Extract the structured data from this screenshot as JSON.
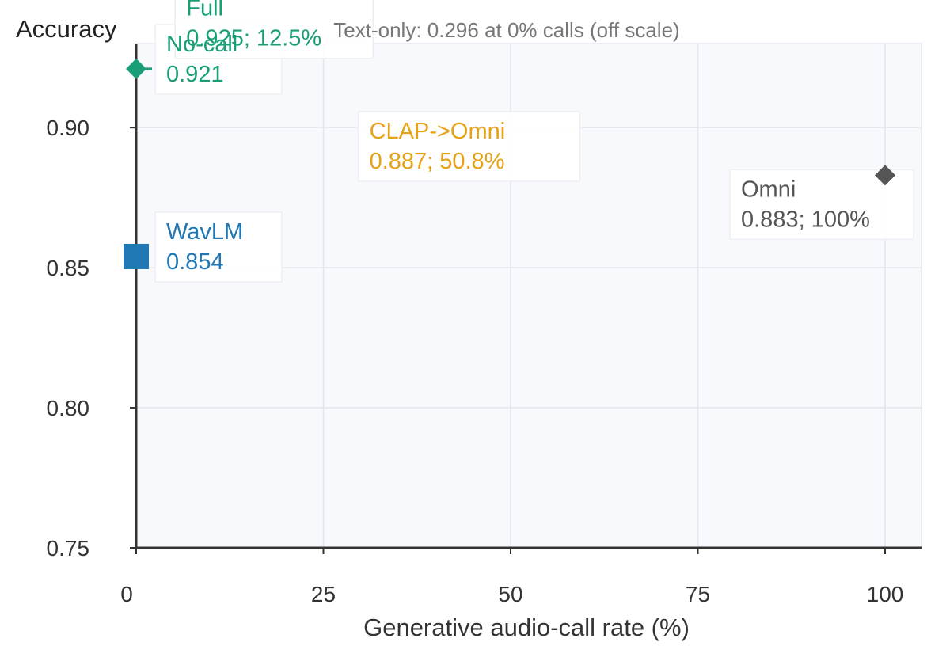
{
  "chart_data": {
    "type": "scatter",
    "title": "",
    "ylabel": "Accuracy",
    "xlabel": "Generative audio-call rate (%)",
    "note": "Text-only: 0.296 at 0% calls (off scale)",
    "xlim": [
      0,
      100
    ],
    "ylim": [
      0.75,
      0.93
    ],
    "xticks": [
      0,
      25,
      50,
      75,
      100
    ],
    "xtick_labels": [
      "0",
      "25",
      "50",
      "75",
      "100"
    ],
    "yticks": [
      0.75,
      0.8,
      0.85,
      0.9
    ],
    "ytick_labels": [
      "0.75",
      "0.80",
      "0.85",
      "0.90"
    ],
    "grid": true,
    "plot_background": "#f8f9fc",
    "points": [
      {
        "name": "No-call",
        "x": 0,
        "y": 0.921,
        "marker": "diamond",
        "color": "#1a9e77",
        "label_lines": [
          "No-call",
          "0.921"
        ],
        "label_side": "right"
      },
      {
        "name": "Full",
        "x": 12.5,
        "y": 0.925,
        "marker": "none",
        "color": "#1a9e77",
        "label_lines": [
          "Full",
          "0.925; 12.5%"
        ],
        "label_side": "above"
      },
      {
        "name": "WavLM",
        "x": 0,
        "y": 0.854,
        "marker": "square",
        "color": "#1f77b4",
        "label_lines": [
          "WavLM",
          "0.854"
        ],
        "label_side": "right"
      },
      {
        "name": "CLAP->Omni",
        "x": 50.8,
        "y": 0.887,
        "marker": "none",
        "color": "#e6a117",
        "label_lines": [
          "CLAP->Omni",
          "0.887; 50.8%"
        ],
        "label_side": "left"
      },
      {
        "name": "Omni",
        "x": 100,
        "y": 0.883,
        "marker": "diamond",
        "color": "#555555",
        "label_lines": [
          "Omni",
          "0.883; 100%"
        ],
        "label_side": "below"
      }
    ]
  }
}
